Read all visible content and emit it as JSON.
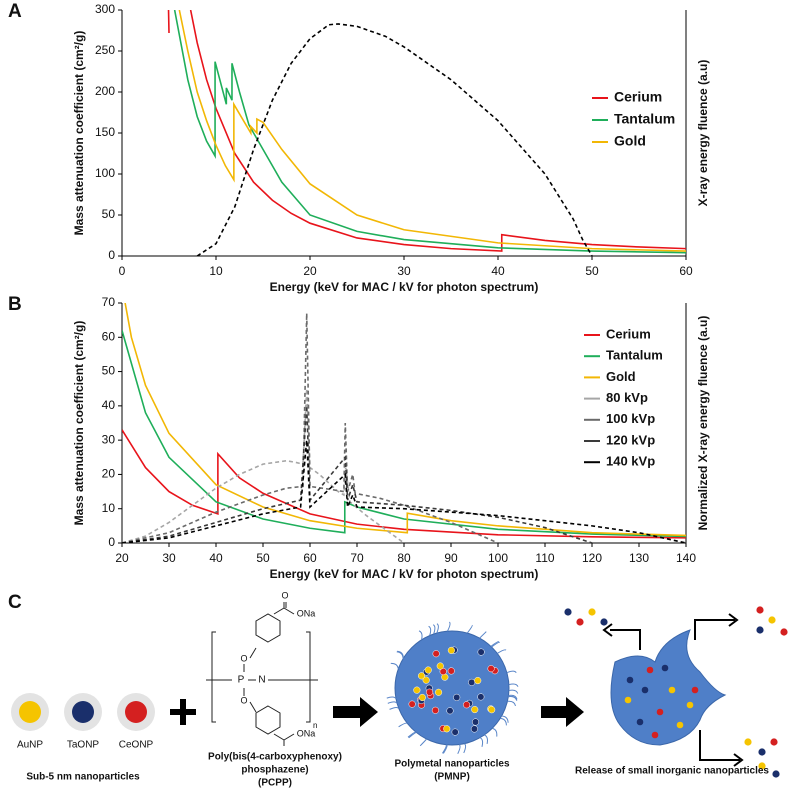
{
  "chart_data": [
    {
      "type": "line",
      "panel_label": "A",
      "y_label": "Mass attenuation coefficient (cm²/g)",
      "x_label": "Energy (keV for MAC / kV for photon spectrum)",
      "y2_label": "X-ray energy fluence (a.u)",
      "xlim": [
        0,
        60
      ],
      "xticks": [
        0,
        10,
        20,
        30,
        40,
        50,
        60
      ],
      "ylim": [
        0,
        300
      ],
      "yticks": [
        0,
        50,
        100,
        150,
        200,
        250,
        300
      ],
      "legend": "upper right",
      "series": [
        {
          "name": "Cerium",
          "color": "#e8141b",
          "x": [
            4.95,
            5.0,
            null,
            7.3,
            8,
            9,
            10,
            12,
            14,
            16,
            18,
            20,
            25,
            30,
            35,
            40.4,
            40.4,
            45,
            50,
            55,
            60
          ],
          "values": [
            300,
            272,
            null,
            300,
            260,
            215,
            180,
            125,
            90,
            68,
            52,
            40,
            22,
            14,
            9,
            6,
            26,
            19,
            14,
            11,
            9
          ]
        },
        {
          "name": "Tantalum",
          "color": "#1fae5a",
          "x": [
            5.6,
            7,
            8,
            9,
            9.9,
            9.9,
            11.1,
            11.1,
            11.7,
            11.7,
            12.5,
            13.5,
            15,
            17,
            20,
            25,
            30,
            40,
            50,
            60
          ],
          "values": [
            300,
            215,
            170,
            140,
            122,
            237,
            185,
            205,
            190,
            235,
            200,
            160,
            130,
            90,
            50,
            30,
            20,
            10,
            6,
            4
          ]
        },
        {
          "name": "Gold",
          "color": "#f2b705",
          "x": [
            6.1,
            7,
            8,
            9,
            10,
            11,
            11.9,
            11.9,
            13.7,
            13.7,
            14.35,
            14.35,
            15,
            17,
            20,
            25,
            30,
            40,
            50,
            60
          ],
          "values": [
            300,
            250,
            200,
            165,
            135,
            110,
            93,
            185,
            150,
            158,
            150,
            167,
            163,
            130,
            88,
            50,
            32,
            16,
            9,
            6
          ]
        },
        {
          "color": "#000000",
          "line_style": "dashed",
          "x": [
            8,
            10,
            12,
            14,
            16,
            18,
            20,
            22,
            23,
            25,
            28,
            30,
            35,
            40,
            45,
            48,
            49,
            50
          ],
          "values": [
            0,
            15,
            60,
            130,
            190,
            235,
            265,
            282,
            283,
            280,
            268,
            255,
            215,
            165,
            100,
            45,
            20,
            0
          ]
        }
      ]
    },
    {
      "type": "line",
      "panel_label": "B",
      "y_label": "Mass attenuation coefficient (cm²/g)",
      "x_label": "Energy (keV for MAC / kV for photon spectrum)",
      "y2_label": "Normalized X-ray energy fluence (a.u)",
      "xlim": [
        20,
        140
      ],
      "xticks": [
        20,
        30,
        40,
        50,
        60,
        70,
        80,
        90,
        100,
        110,
        120,
        130,
        140
      ],
      "ylim": [
        0,
        70
      ],
      "yticks": [
        0,
        10,
        20,
        30,
        40,
        50,
        60,
        70
      ],
      "legend": "upper right",
      "series": [
        {
          "name": "Cerium",
          "color": "#e8141b",
          "x": [
            20,
            25,
            30,
            35,
            40.4,
            40.4,
            45,
            50,
            60,
            70,
            80,
            100,
            120,
            140
          ],
          "values": [
            33,
            22,
            15,
            11,
            8.5,
            26,
            19,
            14.5,
            8.5,
            5.5,
            4,
            2.4,
            1.8,
            1.5
          ]
        },
        {
          "name": "Tantalum",
          "color": "#1fae5a",
          "x": [
            20,
            25,
            30,
            40,
            50,
            60,
            67.4,
            67.4,
            70,
            80,
            100,
            120,
            140
          ],
          "values": [
            62,
            38,
            25,
            12,
            7,
            4.3,
            3,
            12,
            10.5,
            7,
            4,
            2.6,
            1.9
          ]
        },
        {
          "name": "Gold",
          "color": "#f2b705",
          "x": [
            20,
            22,
            25,
            30,
            40,
            50,
            60,
            70,
            80.7,
            80.7,
            90,
            100,
            120,
            140
          ],
          "values": [
            75,
            60,
            46,
            32,
            17,
            10.5,
            6.5,
            4.3,
            3,
            8.7,
            6.5,
            5,
            3,
            2.2
          ]
        },
        {
          "name": "80 kVp",
          "color": "#a6a6a6",
          "line_style": "dashed",
          "x": [
            20,
            25,
            30,
            35,
            40,
            45,
            50,
            55,
            57,
            58.5,
            59.3,
            60,
            62,
            66,
            67.2,
            67.6,
            68.5,
            72,
            76,
            80
          ],
          "values": [
            0,
            2,
            6,
            11,
            16,
            20,
            23,
            24,
            23.5,
            23,
            45,
            22,
            20,
            15,
            14,
            22,
            12,
            8,
            4,
            0
          ]
        },
        {
          "name": "100 kVp",
          "color": "#6a6a6a",
          "line_style": "dashed",
          "x": [
            20,
            30,
            40,
            50,
            55,
            58.5,
            59.3,
            60,
            65,
            67.2,
            67.5,
            68,
            69.1,
            69.6,
            75,
            80,
            90,
            100
          ],
          "values": [
            0,
            3,
            9,
            14,
            16,
            16.5,
            67,
            16.5,
            15.5,
            15,
            35,
            15,
            20,
            14.5,
            13,
            11,
            6,
            0
          ]
        },
        {
          "name": "120 kVp",
          "color": "#3a3a3a",
          "line_style": "dashed",
          "x": [
            20,
            30,
            40,
            50,
            58,
            59.3,
            60,
            67.5,
            68,
            69.1,
            70,
            80,
            90,
            100,
            110,
            120
          ],
          "values": [
            0,
            2,
            6,
            10,
            12.5,
            40,
            12.5,
            25,
            12.5,
            17,
            12,
            11,
            9.5,
            7.5,
            4.5,
            0
          ]
        },
        {
          "name": "140 kVp",
          "color": "#000000",
          "line_style": "dashed",
          "x": [
            20,
            30,
            40,
            50,
            58,
            59.3,
            60,
            67.5,
            68,
            69.1,
            70,
            80,
            90,
            100,
            110,
            120,
            130,
            140
          ],
          "values": [
            0,
            1.5,
            5,
            8.5,
            10.5,
            30,
            10.5,
            20,
            10.5,
            14,
            10.5,
            10,
            9,
            8,
            6.5,
            5,
            3,
            0
          ]
        }
      ]
    }
  ],
  "diagram": {
    "panel_label": "C",
    "nanoparticles": [
      {
        "label": "AuNP",
        "color": "#f5c400"
      },
      {
        "label": "TaONP",
        "color": "#1a2f6b"
      },
      {
        "label": "CeONP",
        "color": "#d42020"
      }
    ],
    "nanoparticles_caption": "Sub-5 nm nanoparticles",
    "polymer": {
      "atoms": [
        "O",
        "ONa",
        "O",
        "P",
        "N",
        "O",
        "ONa"
      ],
      "repeat": "n",
      "caption": [
        "Poly(bis(4-carboxyphenoxy)",
        "phosphazene)",
        "(PCPP)"
      ]
    },
    "pmnp_caption": [
      "Polymetal nanoparticles",
      "(PMNP)"
    ],
    "release_caption": "Release of small inorganic nanoparticles"
  }
}
